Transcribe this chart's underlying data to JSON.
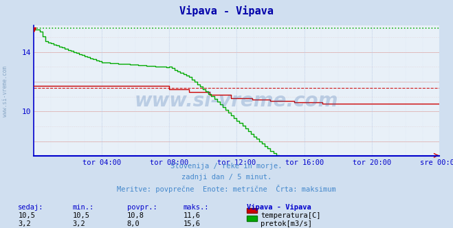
{
  "title": "Vipava - Vipava",
  "bg_color": "#d0dff0",
  "plot_bg_color": "#e8f0f8",
  "grid_color": "#ddaaaa",
  "grid_color_v": "#aabbdd",
  "axis_color": "#0000cc",
  "title_color": "#0000aa",
  "subtitle_lines": [
    "Slovenija / reke in morje.",
    "zadnji dan / 5 minut.",
    "Meritve: povprečne  Enote: metrične  Črta: maksimum"
  ],
  "subtitle_color": "#4488cc",
  "watermark": "www.si-vreme.com",
  "xlabel_times": [
    "tor 04:00",
    "tor 08:00",
    "tor 12:00",
    "tor 16:00",
    "tor 20:00",
    "sre 00:00"
  ],
  "ylim": [
    7.0,
    15.8
  ],
  "yticks": [
    10,
    14
  ],
  "xlim": [
    0,
    288
  ],
  "tick_positions": [
    48,
    96,
    144,
    192,
    240,
    288
  ],
  "temp_color": "#cc0000",
  "flow_color": "#00aa00",
  "max_temp": 11.6,
  "max_flow": 15.6,
  "temp_current": "10,5",
  "temp_min": "10,5",
  "temp_avg": "10,8",
  "temp_max": "11,6",
  "flow_current": "3,2",
  "flow_min": "3,2",
  "flow_avg": "8,0",
  "flow_max": "15,6",
  "table_label_color": "#0000cc",
  "table_value_color": "#000000",
  "left_watermark": "www.si-vreme.com"
}
